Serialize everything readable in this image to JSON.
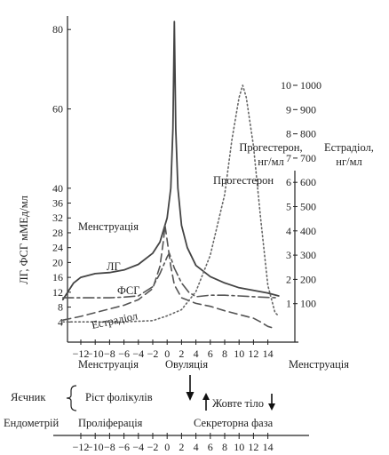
{
  "chart_data": {
    "type": "line",
    "x": [
      -12,
      -10,
      -8,
      -6,
      -4,
      -2,
      0,
      2,
      4,
      6,
      8,
      10,
      12,
      14
    ],
    "x_ticks": [
      "−12",
      "−10",
      "−8",
      "−6",
      "−4",
      "−2",
      "0",
      "2",
      "4",
      "6",
      "8",
      "10",
      "12",
      "14"
    ],
    "left_axis": {
      "label": "ЛГ, ФСГ мМЕд/мл",
      "ticks": [
        4,
        8,
        12,
        16,
        20,
        24,
        28,
        32,
        36,
        40,
        60,
        80
      ]
    },
    "progesterone_axis": {
      "label_line1": "Прогестерон,",
      "label_line2": "нг/мл",
      "ticks": [
        1,
        2,
        3,
        4,
        5,
        6,
        7,
        8,
        9,
        10
      ]
    },
    "estradiol_axis": {
      "label_line1": "Естрадіол,",
      "label_line2": "нг/мл",
      "ticks": [
        100,
        200,
        300,
        400,
        500,
        600,
        700,
        800,
        900,
        1000
      ]
    },
    "series": [
      {
        "name": "ЛГ",
        "style": "solid",
        "color": "#444444",
        "points": [
          [
            -14.5,
            10
          ],
          [
            -13,
            14.5
          ],
          [
            -12,
            16
          ],
          [
            -10,
            17
          ],
          [
            -8,
            17.3
          ],
          [
            -6,
            18
          ],
          [
            -4,
            19.5
          ],
          [
            -2,
            22.5
          ],
          [
            -1,
            25.5
          ],
          [
            0,
            32
          ],
          [
            0.5,
            40
          ],
          [
            0.8,
            55
          ],
          [
            1,
            82
          ],
          [
            1.2,
            55
          ],
          [
            1.5,
            40
          ],
          [
            2,
            30
          ],
          [
            2.8,
            24
          ],
          [
            4,
            19.2
          ],
          [
            6,
            16.2
          ],
          [
            8,
            14.5
          ],
          [
            10,
            13.2
          ],
          [
            12,
            12.5
          ],
          [
            14,
            11.8
          ],
          [
            15.5,
            11
          ]
        ]
      },
      {
        "name": "ФСГ",
        "style": "dashed",
        "color": "#555555",
        "points": [
          [
            -14.5,
            4.5
          ],
          [
            -12,
            5.5
          ],
          [
            -10,
            6.5
          ],
          [
            -8,
            7.5
          ],
          [
            -6,
            8.5
          ],
          [
            -4,
            10
          ],
          [
            -2,
            13
          ],
          [
            -1,
            19
          ],
          [
            -0.5,
            26
          ],
          [
            -0.3,
            30
          ],
          [
            0,
            26
          ],
          [
            0.5,
            19
          ],
          [
            1,
            14
          ],
          [
            2,
            10.5
          ],
          [
            4,
            9
          ],
          [
            6,
            8.2
          ],
          [
            8,
            7
          ],
          [
            10,
            6
          ],
          [
            12,
            5
          ],
          [
            13,
            4
          ],
          [
            14,
            2.8
          ],
          [
            15,
            2.2
          ]
        ]
      },
      {
        "name": "Естрадіол",
        "style": "dash-dot",
        "color": "#555555",
        "points": [
          [
            -14.5,
            10.5
          ],
          [
            -12,
            10.5
          ],
          [
            -8,
            10.5
          ],
          [
            -6,
            10.7
          ],
          [
            -4,
            11
          ],
          [
            -2,
            13.5
          ],
          [
            -1,
            17
          ],
          [
            0,
            21.5
          ],
          [
            0.3,
            22.5
          ],
          [
            1,
            18.5
          ],
          [
            2,
            14.5
          ],
          [
            3,
            12
          ],
          [
            4,
            10.8
          ],
          [
            6,
            11.2
          ],
          [
            8,
            11.2
          ],
          [
            10,
            11
          ],
          [
            12,
            10.8
          ],
          [
            14,
            10.6
          ],
          [
            15.5,
            10.5
          ]
        ]
      },
      {
        "name": "Прогестерон",
        "style": "dotted",
        "color": "#666666",
        "points": [
          [
            -14.5,
            1
          ],
          [
            -6,
            1
          ],
          [
            -2,
            1.2
          ],
          [
            0,
            2
          ],
          [
            2,
            3
          ],
          [
            4,
            6
          ],
          [
            6,
            12
          ],
          [
            8,
            22
          ],
          [
            9,
            31
          ],
          [
            10,
            38
          ],
          [
            10.5,
            40
          ],
          [
            11,
            38
          ],
          [
            12,
            30
          ],
          [
            13,
            18
          ],
          [
            14,
            7
          ],
          [
            15,
            2.5
          ],
          [
            15.5,
            2
          ]
        ]
      }
    ],
    "series_labels": [
      "Менструація",
      "ЛГ",
      "ФСГ",
      "Естрадіол",
      "Прогестерон"
    ],
    "phase_row": [
      "Менструація",
      "Овуляція",
      "Менструація"
    ],
    "ovary_row": {
      "label": "Яєчник",
      "phase1": "Ріст фолікулів",
      "phase2": "Жовте тіло"
    },
    "endometrium_row": {
      "label": "Ендометрій",
      "phase1": "Проліферація",
      "phase2": "Секреторна фаза"
    }
  }
}
